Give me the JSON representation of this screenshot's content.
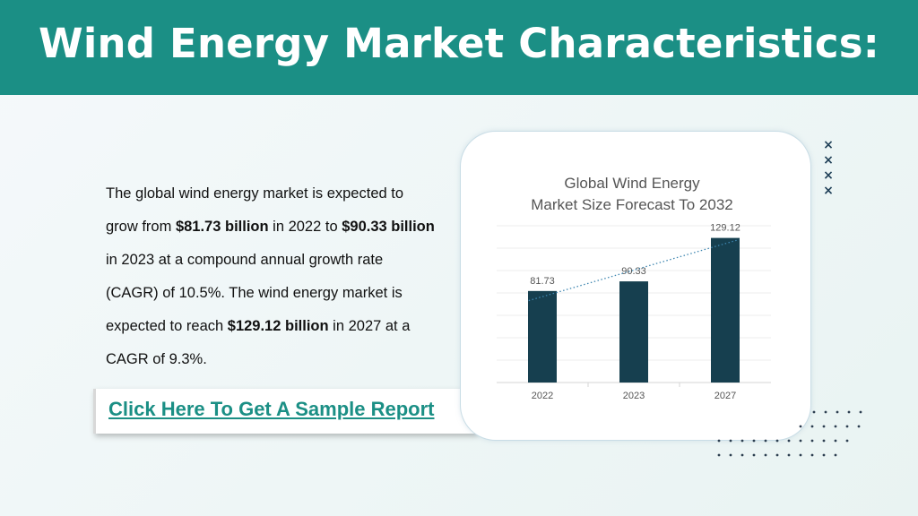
{
  "header": {
    "title": "Wind Energy Market Characteristics:"
  },
  "body": {
    "segments": [
      {
        "text": "The global wind energy market is expected to grow from ",
        "bold": false
      },
      {
        "text": "$81.73 billion",
        "bold": true
      },
      {
        "text": " in 2022 to ",
        "bold": false
      },
      {
        "text": "$90.33 billion",
        "bold": true
      },
      {
        "text": " in 2023 at a compound annual growth rate (CAGR) of 10.5%. The wind energy market is expected to reach ",
        "bold": false
      },
      {
        "text": "$129.12 billion",
        "bold": true
      },
      {
        "text": " in 2027 at a CAGR of 9.3%.",
        "bold": false
      }
    ]
  },
  "cta": {
    "label": "Click Here To Get A Sample Report"
  },
  "decor": {
    "x_marks": [
      "×",
      "×",
      "×",
      "×"
    ]
  },
  "colors": {
    "header_bg": "#1b8f85",
    "bar": "#163f4f",
    "trendline": "#3e86b0",
    "link": "#1b8f85"
  },
  "chart_data": {
    "type": "bar",
    "title_lines": [
      "Global Wind Energy",
      "Market Size Forecast To 2032"
    ],
    "categories": [
      "2022",
      "2023",
      "2027"
    ],
    "values": [
      81.73,
      90.33,
      129.12
    ],
    "data_labels": [
      "81.73",
      "90.33",
      "129.12"
    ],
    "trendline": "linear-dotted",
    "ylim": [
      0,
      140
    ],
    "grid": true,
    "legend": "none"
  }
}
